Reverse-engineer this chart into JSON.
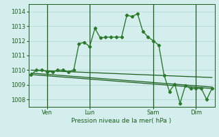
{
  "background_color": "#d4eeed",
  "grid_color": "#b8d8d4",
  "line_color_dark": "#1a5c1a",
  "line_color_mid": "#2a7a2a",
  "title": "Pression niveau de la mer( hPa )",
  "xlabel_days": [
    "Ven",
    "Lun",
    "Sam",
    "Dim"
  ],
  "ylim": [
    1007.5,
    1014.5
  ],
  "yticks": [
    1008,
    1009,
    1010,
    1011,
    1012,
    1013,
    1014
  ],
  "series1_x": [
    0,
    1,
    2,
    3,
    4,
    5,
    6,
    7,
    8,
    9,
    10,
    11,
    12,
    13,
    14,
    15,
    16,
    17,
    18,
    19,
    20,
    21,
    22,
    23,
    24,
    25,
    26,
    27,
    28,
    29,
    30,
    31,
    32,
    33,
    34
  ],
  "series1_y": [
    1009.7,
    1010.0,
    1010.0,
    1009.9,
    1009.9,
    1010.0,
    1010.0,
    1009.9,
    1010.0,
    1011.8,
    1011.9,
    1011.6,
    1012.85,
    1012.2,
    1012.25,
    1012.25,
    1012.25,
    1012.25,
    1013.75,
    1013.65,
    1013.85,
    1012.65,
    1012.25,
    1012.0,
    1011.7,
    1009.65,
    1008.55,
    1009.05,
    1007.75,
    1008.95,
    1008.75,
    1008.75,
    1008.75,
    1008.0,
    1008.75
  ],
  "trend1_x": [
    0,
    34
  ],
  "trend1_y": [
    1010.0,
    1009.5
  ],
  "trend2_x": [
    0,
    34
  ],
  "trend2_y": [
    1009.8,
    1008.85
  ],
  "trend3_x": [
    0,
    34
  ],
  "trend3_y": [
    1009.7,
    1008.75
  ],
  "vlines_x": [
    3,
    11,
    23,
    31
  ],
  "total_points": 35,
  "xlim": [
    -0.5,
    34.5
  ]
}
